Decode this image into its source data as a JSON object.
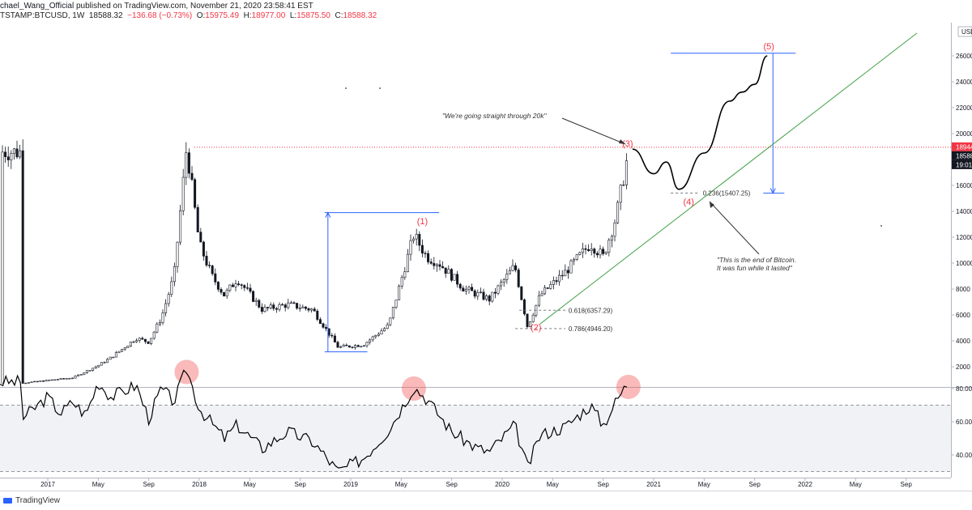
{
  "header": {
    "author": "chael_Wang_Official",
    "published": " published on TradingView.com, November 21, 2020 23:58:41 EST",
    "symbol": "TSTAMP:BTCUSD, 1W",
    "last": "18588.32",
    "change": "−136.68 (−0.73%)",
    "open_label": "O:",
    "open": "15975.49",
    "high_label": "H:",
    "high": "18977.00",
    "low_label": "L:",
    "low": "15875.50",
    "close_label": "C:",
    "close": "18588.32"
  },
  "footer": {
    "brand": "TradingView"
  },
  "colors": {
    "up": "#26a69a",
    "down": "#ef5350",
    "candle": "#131722",
    "measure": "#2962ff",
    "trendline": "#4caf50",
    "label_red": "#f23645"
  },
  "chart_data": [
    {
      "type": "candlestick",
      "title": "BTCUSD 1W (Bitstamp)",
      "y_axis_ticks": [
        2000,
        4000,
        6000,
        8000,
        10000,
        12000,
        14000,
        16000,
        18000,
        20000,
        22000,
        24000,
        26000
      ],
      "ylim": [
        400,
        29000
      ],
      "x_axis_labels": [
        "2017",
        "May",
        "Sep",
        "2018",
        "May",
        "Sep",
        "2019",
        "May",
        "Sep",
        "2020",
        "May",
        "Sep",
        "2021",
        "May",
        "Sep",
        "2022",
        "May",
        "Sep"
      ],
      "price_labels": {
        "current": "18944",
        "last": "18588",
        "countdown": "19:01",
        "currency": "USD"
      },
      "waypoints": [
        [
          "2016-11",
          740
        ],
        [
          "2017-01",
          950
        ],
        [
          "2017-03",
          1150
        ],
        [
          "2017-05",
          2100
        ],
        [
          "2017-06",
          2700
        ],
        [
          "2017-08",
          4200
        ],
        [
          "2017-09",
          3900
        ],
        [
          "2017-10",
          5800
        ],
        [
          "2017-11",
          9000
        ],
        [
          "2017-12",
          19000
        ],
        [
          "2018-01",
          11500
        ],
        [
          "2018-02",
          9000
        ],
        [
          "2018-03",
          7500
        ],
        [
          "2018-04",
          8800
        ],
        [
          "2018-06",
          6400
        ],
        [
          "2018-08",
          6800
        ],
        [
          "2018-10",
          6400
        ],
        [
          "2018-12",
          3500
        ],
        [
          "2019-02",
          3700
        ],
        [
          "2019-04",
          5200
        ],
        [
          "2019-06",
          12200
        ],
        [
          "2019-07",
          10500
        ],
        [
          "2019-08",
          10000
        ],
        [
          "2019-10",
          8000
        ],
        [
          "2019-12",
          7200
        ],
        [
          "2020-02",
          9800
        ],
        [
          "2020-03",
          5100
        ],
        [
          "2020-04",
          7500
        ],
        [
          "2020-06",
          9300
        ],
        [
          "2020-08",
          11500
        ],
        [
          "2020-09",
          10500
        ],
        [
          "2020-10",
          13500
        ],
        [
          "2020-11",
          18588
        ]
      ],
      "projection": [
        [
          "2020-11",
          18800
        ],
        [
          "2021-01",
          16900
        ],
        [
          "2021-02",
          17800
        ],
        [
          "2021-03",
          15700
        ],
        [
          "2021-05",
          18500
        ],
        [
          "2021-07",
          22500
        ],
        [
          "2021-08",
          23200
        ],
        [
          "2021-09",
          23800
        ],
        [
          "2021-10",
          26000
        ]
      ],
      "wave_labels": [
        {
          "text": "(1)",
          "price": 13000
        },
        {
          "text": "(2)",
          "price": 4800
        },
        {
          "text": "(3)",
          "price": 19000
        },
        {
          "text": "(4)",
          "price": 14500
        },
        {
          "text": "(5)",
          "price": 26500
        }
      ],
      "fib_levels": [
        {
          "label": "0.618(6357.29)",
          "price": 6357.29
        },
        {
          "label": "0.786(4946.20)",
          "price": 4946.2
        },
        {
          "label": "0.236(15407.25)",
          "price": 15407.25
        }
      ],
      "annotations": [
        "\"We're going straight through 20k\"",
        "\"This is the end of Bitcoin.",
        "It was fun while it lasted\""
      ],
      "measure_ranges": [
        {
          "from": 3150,
          "to": 13900
        },
        {
          "from": 15400,
          "to": 26200
        }
      ]
    },
    {
      "type": "line",
      "title": "RSI",
      "y_axis_ticks": [
        40,
        60,
        80
      ],
      "ylim": [
        28,
        97
      ],
      "band": [
        30,
        70
      ],
      "waypoints": [
        [
          "2016-11",
          62
        ],
        [
          "2017-01",
          75
        ],
        [
          "2017-02",
          65
        ],
        [
          "2017-03",
          72
        ],
        [
          "2017-04",
          64
        ],
        [
          "2017-05",
          84
        ],
        [
          "2017-06",
          75
        ],
        [
          "2017-08",
          82
        ],
        [
          "2017-09",
          62
        ],
        [
          "2017-10",
          80
        ],
        [
          "2017-11",
          72
        ],
        [
          "2017-12",
          92
        ],
        [
          "2018-01",
          68
        ],
        [
          "2018-03",
          50
        ],
        [
          "2018-04",
          58
        ],
        [
          "2018-06",
          44
        ],
        [
          "2018-08",
          54
        ],
        [
          "2018-10",
          48
        ],
        [
          "2018-12",
          30
        ],
        [
          "2019-02",
          38
        ],
        [
          "2019-04",
          55
        ],
        [
          "2019-06",
          81
        ],
        [
          "2019-07",
          74
        ],
        [
          "2019-09",
          54
        ],
        [
          "2019-11",
          44
        ],
        [
          "2019-12",
          42
        ],
        [
          "2020-02",
          58
        ],
        [
          "2020-03",
          32
        ],
        [
          "2020-04",
          52
        ],
        [
          "2020-06",
          57
        ],
        [
          "2020-08",
          70
        ],
        [
          "2020-09",
          58
        ],
        [
          "2020-10",
          72
        ],
        [
          "2020-11",
          84
        ]
      ],
      "highlights": [
        {
          "at": "2017-12",
          "value": 90
        },
        {
          "at": "2019-06",
          "value": 80
        },
        {
          "at": "2020-11",
          "value": 81
        }
      ]
    }
  ]
}
